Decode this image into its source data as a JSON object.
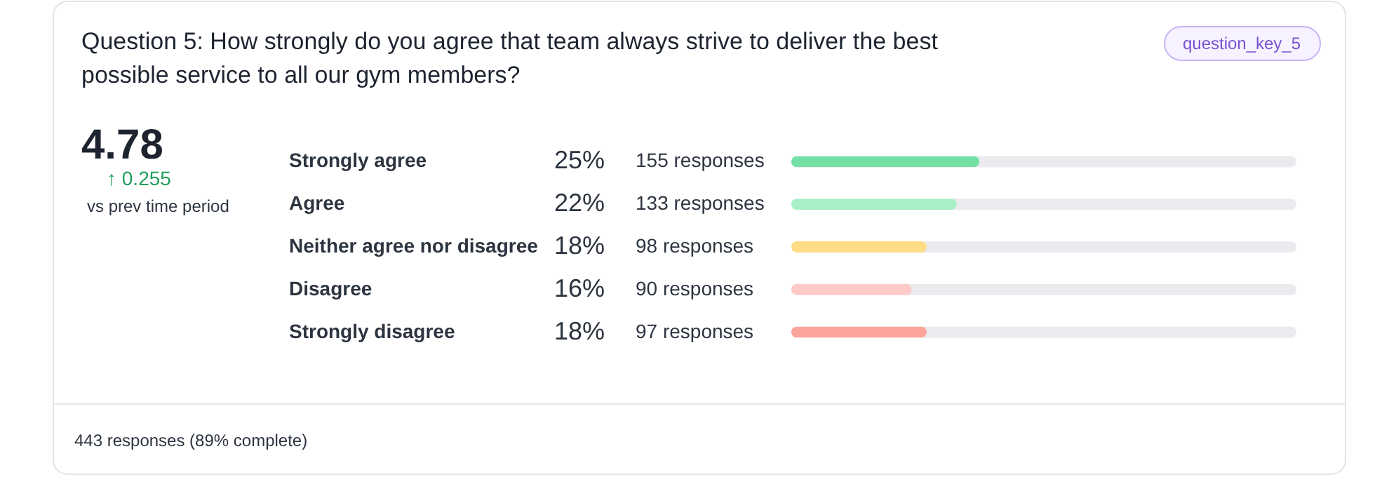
{
  "chart_data": {
    "type": "bar",
    "orientation": "horizontal",
    "title": "Question 5: How strongly do you agree that team always strive to deliver the best possible service to all our gym members?",
    "categories": [
      "Strongly agree",
      "Agree",
      "Neither agree nor disagree",
      "Disagree",
      "Strongly disagree"
    ],
    "values": [
      25,
      22,
      18,
      16,
      18
    ],
    "colors": [
      "#74e0a5",
      "#a8efc6",
      "#fddc85",
      "#fec9c6",
      "#fba59b"
    ],
    "value_labels": [
      "25%",
      "22%",
      "18%",
      "16%",
      "18%"
    ],
    "annotations": [
      "4.78",
      "↑ 0.255",
      "vs prev time period",
      "question_key_5",
      "443 responses (89% complete)",
      "155 responses",
      "133 responses",
      "98 responses",
      "90 responses",
      "97 responses"
    ]
  }
}
